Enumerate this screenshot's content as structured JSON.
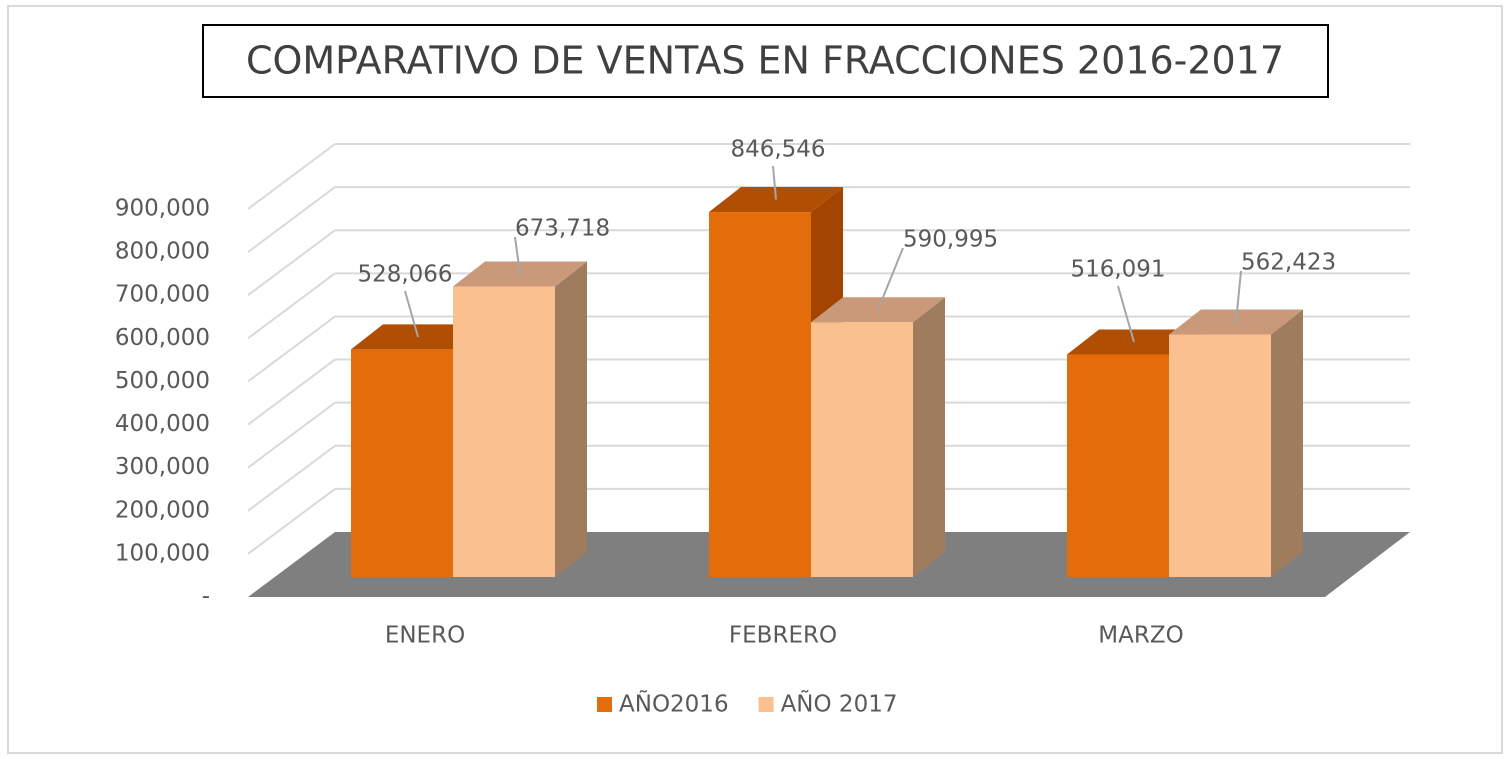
{
  "chart_data": {
    "type": "bar3d",
    "title": "COMPARATIVO DE VENTAS EN FRACCIONES 2016-2017",
    "categories": [
      "ENERO",
      "FEBRERO",
      "MARZO"
    ],
    "series": [
      {
        "name": "AÑO2016",
        "color": "#e46c0a",
        "values": [
          528066,
          846546,
          516091
        ],
        "value_labels": [
          "528,066",
          "846,546",
          "516,091"
        ]
      },
      {
        "name": "AÑO 2017",
        "color": "#fac090",
        "values": [
          673718,
          590995,
          562423
        ],
        "value_labels": [
          "673,718",
          "590,995",
          "562,423"
        ]
      }
    ],
    "ylim": [
      0,
      900000
    ],
    "yticks": [
      {
        "value": 0,
        "label": "-"
      },
      {
        "value": 100000,
        "label": "100,000"
      },
      {
        "value": 200000,
        "label": "200,000"
      },
      {
        "value": 300000,
        "label": "300,000"
      },
      {
        "value": 400000,
        "label": "400,000"
      },
      {
        "value": 500000,
        "label": "500,000"
      },
      {
        "value": 600000,
        "label": "600,000"
      },
      {
        "value": 700000,
        "label": "700,000"
      },
      {
        "value": 800000,
        "label": "800,000"
      },
      {
        "value": 900000,
        "label": "900,000"
      }
    ],
    "grid": true,
    "legend": "bottom"
  }
}
